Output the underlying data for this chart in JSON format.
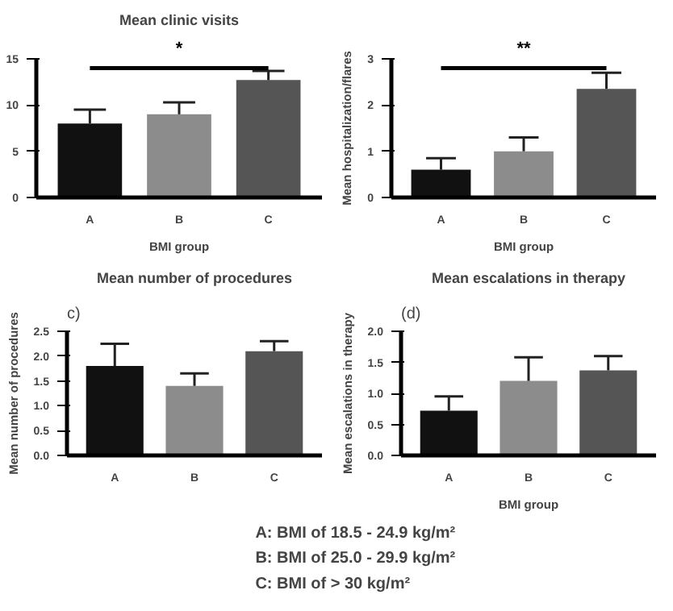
{
  "chart_data": [
    {
      "type": "bar",
      "title": "Mean clinic visits",
      "xlabel": "BMI group",
      "categories": [
        "A",
        "B",
        "C"
      ],
      "colors": [
        "#111111",
        "#8c8c8c",
        "#555555"
      ],
      "values": [
        8.0,
        9.0,
        12.7
      ],
      "errors": [
        [
          8.0,
          9.5
        ],
        [
          9.0,
          10.3
        ],
        [
          12.7,
          13.7
        ]
      ],
      "ylim": [
        0,
        15
      ],
      "yticks": [
        0,
        5,
        10,
        15
      ],
      "grid": false,
      "ref_lines": [
        {
          "axis": "y",
          "value": 14,
          "label": "*"
        }
      ]
    },
    {
      "type": "bar",
      "xlabel": "BMI group",
      "ylabel": "Mean hospitalization/flares",
      "categories": [
        "A",
        "B",
        "C"
      ],
      "colors": [
        "#111111",
        "#8c8c8c",
        "#555555"
      ],
      "values": [
        0.6,
        1.0,
        2.35
      ],
      "errors": [
        [
          0.6,
          0.85
        ],
        [
          1.0,
          1.3
        ],
        [
          2.35,
          2.7
        ]
      ],
      "ylim": [
        0,
        3
      ],
      "yticks": [
        0,
        1,
        2,
        3
      ],
      "grid": false,
      "ref_lines": [
        {
          "axis": "y",
          "value": 2.8,
          "label": "**"
        }
      ]
    },
    {
      "type": "bar",
      "title": "Mean number of procedures",
      "ylabel": "Mean number of procedures",
      "categories": [
        "A",
        "B",
        "C"
      ],
      "colors": [
        "#111111",
        "#8c8c8c",
        "#555555"
      ],
      "values": [
        1.8,
        1.4,
        2.1
      ],
      "errors": [
        [
          1.8,
          2.25
        ],
        [
          1.4,
          1.65
        ],
        [
          2.1,
          2.3
        ]
      ],
      "ylim": [
        0,
        2.5
      ],
      "yticks": [
        {
          "value": 0,
          "label": "0.0"
        },
        {
          "value": 0.5,
          "label": "0.5"
        },
        {
          "value": 1,
          "label": "1.0"
        },
        {
          "value": 1.5,
          "label": "1.5"
        },
        {
          "value": 2,
          "label": "2.0"
        },
        {
          "value": 2.5,
          "label": "2.5"
        }
      ],
      "grid": false,
      "annotations": [
        "c)"
      ]
    },
    {
      "type": "bar",
      "title": "Mean escalations in therapy",
      "xlabel": "BMI group",
      "ylabel": "Mean escalations in therapy",
      "categories": [
        "A",
        "B",
        "C"
      ],
      "colors": [
        "#111111",
        "#8c8c8c",
        "#555555"
      ],
      "values": [
        0.72,
        1.2,
        1.37
      ],
      "errors": [
        [
          0.72,
          0.95
        ],
        [
          1.2,
          1.58
        ],
        [
          1.37,
          1.6
        ]
      ],
      "ylim": [
        0,
        2
      ],
      "yticks": [
        {
          "value": 0,
          "label": "0.0"
        },
        {
          "value": 0.5,
          "label": "0.5"
        },
        {
          "value": 1,
          "label": "1.0"
        },
        {
          "value": 1.5,
          "label": "1.5"
        },
        {
          "value": 2,
          "label": "2.0"
        }
      ],
      "grid": false,
      "annotations": [
        "(d)"
      ]
    },
    {
      "type": "other",
      "annotations": [
        "A: BMI of 18.5 - 24.9 kg/m²",
        "B: BMI of 25.0 - 29.9 kg/m²",
        "C: BMI of > 30 kg/m²"
      ]
    }
  ]
}
